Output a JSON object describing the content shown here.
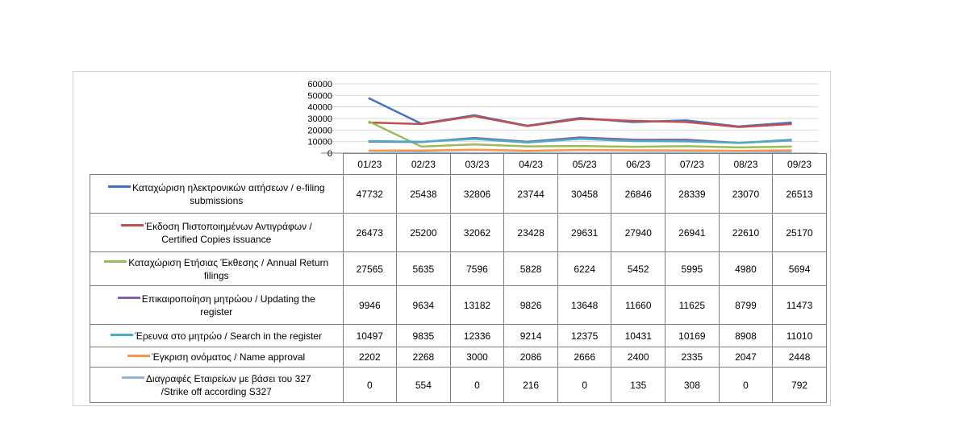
{
  "chart_data": {
    "type": "line",
    "categories": [
      "01/23",
      "02/23",
      "03/23",
      "04/23",
      "05/23",
      "06/23",
      "07/23",
      "08/23",
      "09/23"
    ],
    "ylim": [
      0,
      60000
    ],
    "yticks": [
      "60000",
      "50000",
      "40000",
      "30000",
      "20000",
      "10000",
      "0"
    ],
    "ytick_values": [
      60000,
      50000,
      40000,
      30000,
      20000,
      10000,
      0
    ],
    "grid": true,
    "legend": "in data table",
    "series": [
      {
        "name": "Καταχώριση ηλεκτρονικών αιτήσεων / e-filing submissions",
        "color": "#4472c4",
        "values": [
          47732,
          25438,
          32806,
          23744,
          30458,
          26846,
          28339,
          23070,
          26513
        ]
      },
      {
        "name": "Έκδοση Πιστοποιημένων Αντιγράφων / Certified Copies issuance",
        "color": "#c0504d",
        "values": [
          26473,
          25200,
          32062,
          23428,
          29631,
          27940,
          26941,
          22610,
          25170
        ]
      },
      {
        "name": "Καταχώριση Ετήσιας Έκθεσης / Annual Return filings",
        "color": "#9bbb59",
        "values": [
          27565,
          5635,
          7596,
          5828,
          6224,
          5452,
          5995,
          4980,
          5694
        ]
      },
      {
        "name": "Επικαιροποίηση μητρώου / Updating the register",
        "color": "#8064a2",
        "values": [
          9946,
          9634,
          13182,
          9826,
          13648,
          11660,
          11625,
          8799,
          11473
        ]
      },
      {
        "name": "Έρευνα στο μητρώο / Search in the register",
        "color": "#4bacc6",
        "values": [
          10497,
          9835,
          12336,
          9214,
          12375,
          10431,
          10169,
          8908,
          11010
        ]
      },
      {
        "name": "Έγκριση ονόματος / Name approval",
        "color": "#f79646",
        "values": [
          2202,
          2268,
          3000,
          2086,
          2666,
          2400,
          2335,
          2047,
          2448
        ]
      },
      {
        "name": "Διαγραφές Εταιρείων με βάσει του 327 /Strike off according S327",
        "color": "#95b3d7",
        "values": [
          0,
          554,
          0,
          216,
          0,
          135,
          308,
          0,
          792
        ]
      }
    ],
    "row_labels": [
      [
        "Καταχώριση ηλεκτρονικών αιτήσεων / e-filing",
        "submissions"
      ],
      [
        "Έκδοση Πιστοποιημένων Αντιγράφων /",
        "Certified Copies issuance"
      ],
      [
        "Καταχώριση Ετήσιας Έκθεσης / Annual Return",
        "filings"
      ],
      [
        "Επικαιροποίηση μητρώου / Updating the",
        "register"
      ],
      [
        "Έρευνα στο μητρώο / Search in the register"
      ],
      [
        "Έγκριση ονόματος / Name approval"
      ],
      [
        "Διαγραφές Εταιρείων  με  βάσει του 327",
        "/Strike off according S327"
      ]
    ]
  }
}
